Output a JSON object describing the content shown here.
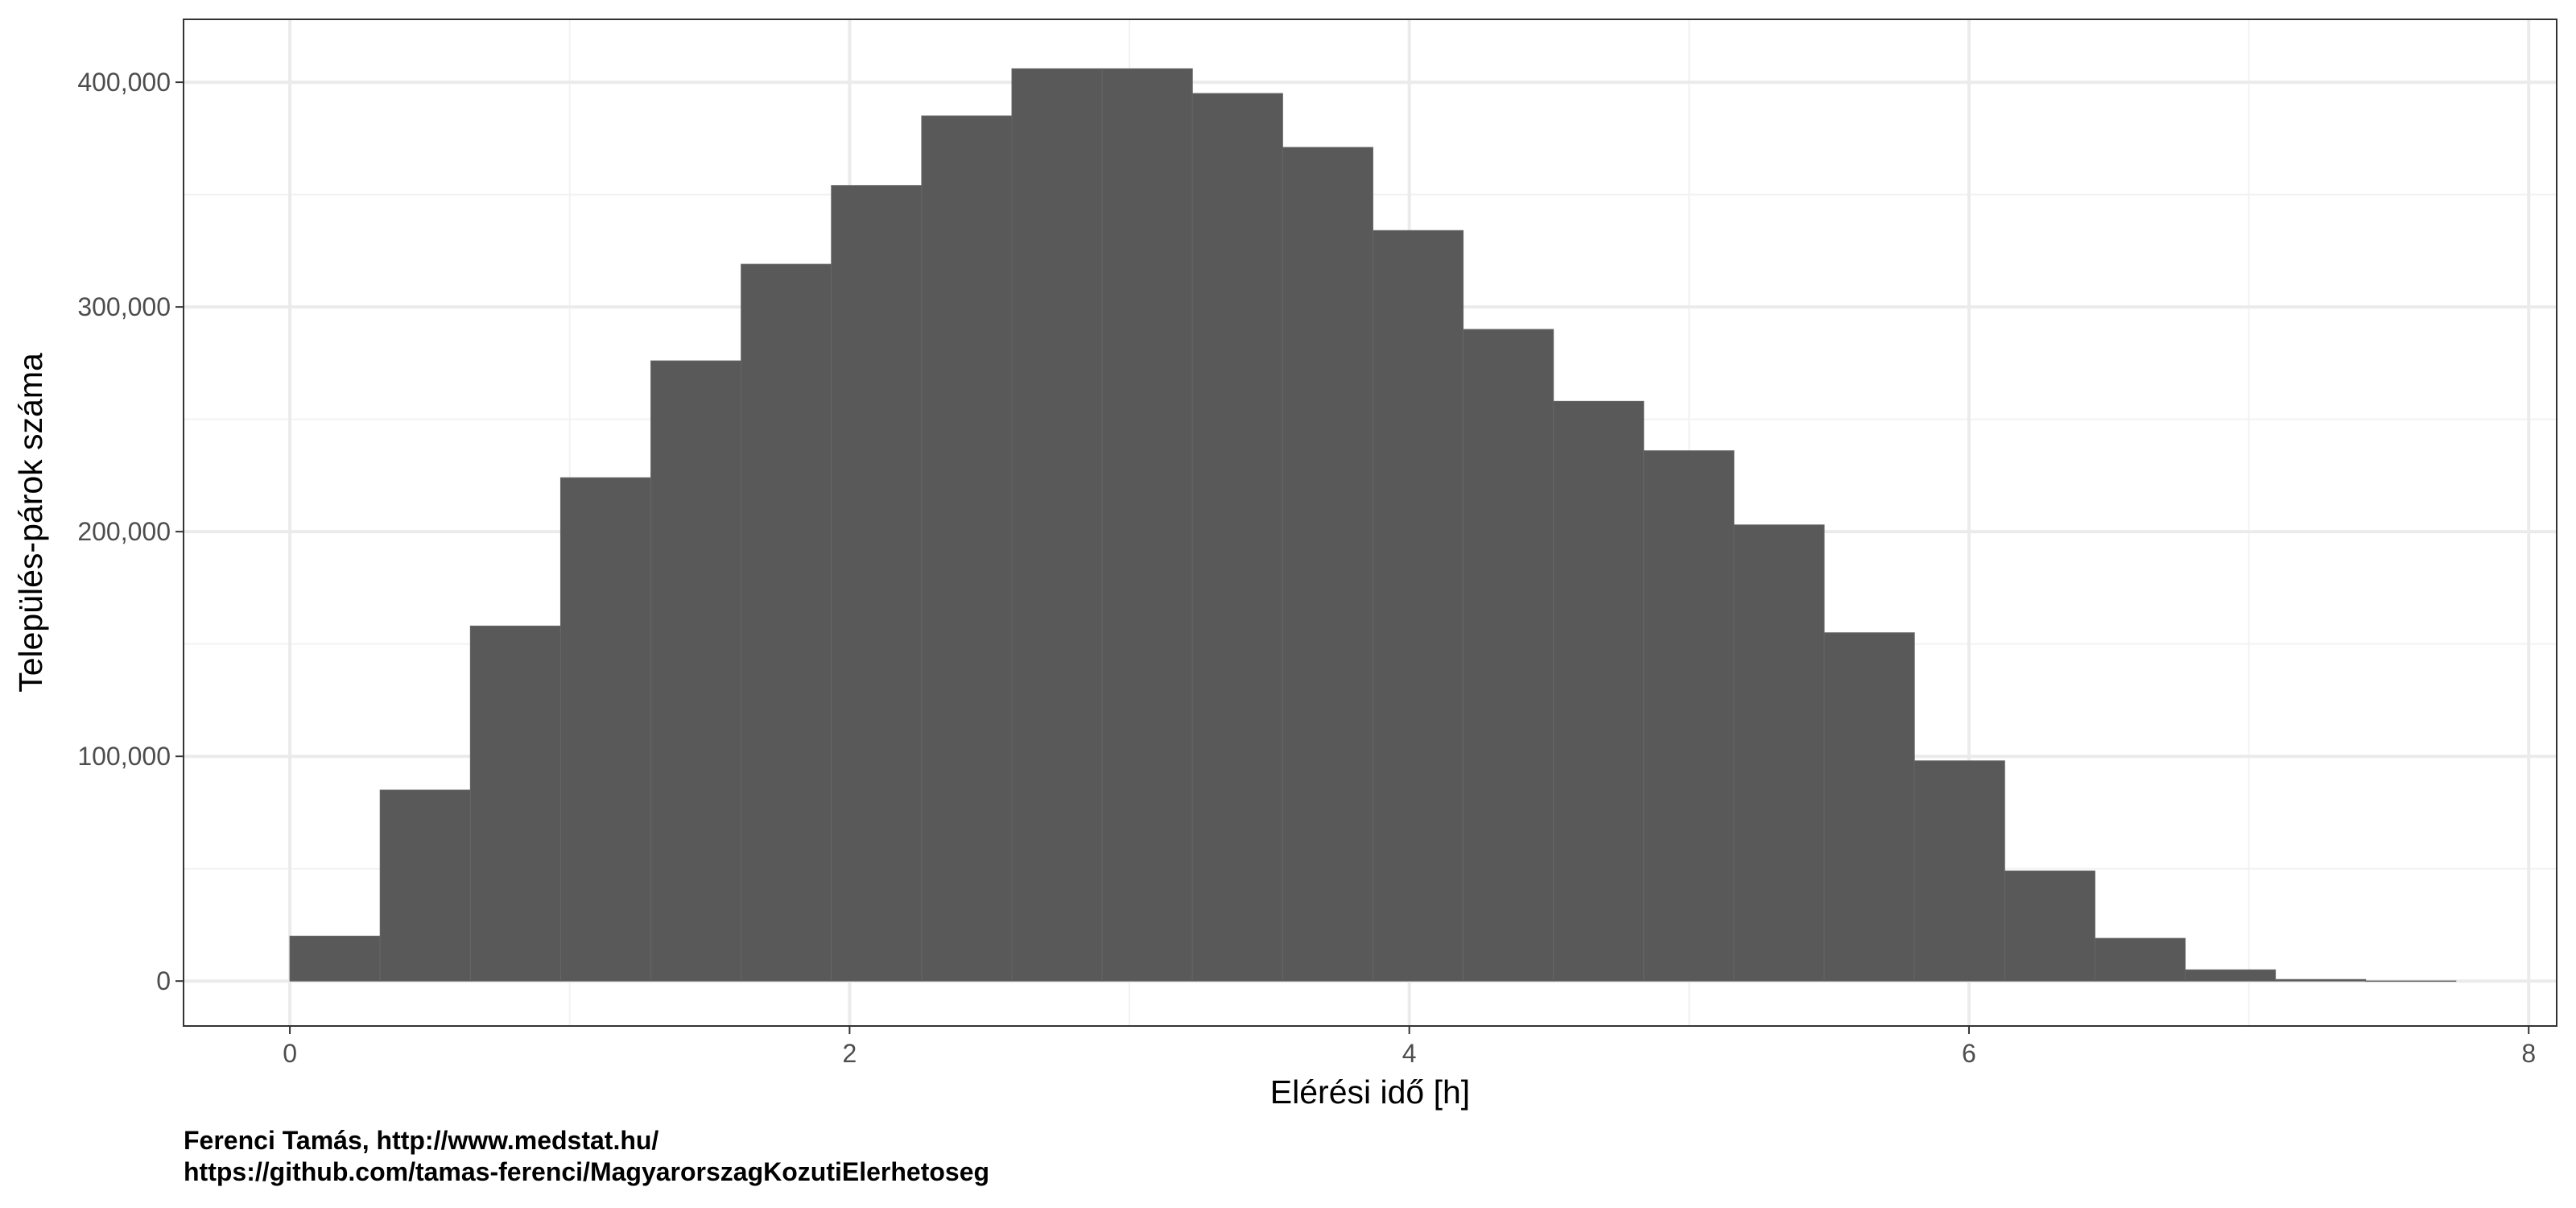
{
  "chart_data": {
    "type": "histogram",
    "xlabel": "Elérési idő [h]",
    "ylabel": "Település-párok száma",
    "xlim": [
      -0.38,
      8.1
    ],
    "ylim": [
      -20000,
      428000
    ],
    "x_ticks": [
      0,
      2,
      4,
      6,
      8
    ],
    "x_tick_labels": [
      "0",
      "2",
      "4",
      "6",
      "8"
    ],
    "y_ticks": [
      0,
      100000,
      200000,
      300000,
      400000
    ],
    "y_tick_labels": [
      "0",
      "100,000",
      "200,000",
      "300,000",
      "400,000"
    ],
    "grid": true,
    "legend": "none",
    "bin_width": 0.3225,
    "bins": [
      {
        "x0": 0.0,
        "x1": 0.3225,
        "value": 20000
      },
      {
        "x0": 0.3225,
        "x1": 0.645,
        "value": 85000
      },
      {
        "x0": 0.645,
        "x1": 0.9675,
        "value": 158000
      },
      {
        "x0": 0.9675,
        "x1": 1.29,
        "value": 224000
      },
      {
        "x0": 1.29,
        "x1": 1.6125,
        "value": 276000
      },
      {
        "x0": 1.6125,
        "x1": 1.935,
        "value": 319000
      },
      {
        "x0": 1.935,
        "x1": 2.2575,
        "value": 354000
      },
      {
        "x0": 2.2575,
        "x1": 2.58,
        "value": 385000
      },
      {
        "x0": 2.58,
        "x1": 2.9025,
        "value": 406000
      },
      {
        "x0": 2.9025,
        "x1": 3.225,
        "value": 406000
      },
      {
        "x0": 3.225,
        "x1": 3.5475,
        "value": 395000
      },
      {
        "x0": 3.5475,
        "x1": 3.87,
        "value": 371000
      },
      {
        "x0": 3.87,
        "x1": 4.1925,
        "value": 334000
      },
      {
        "x0": 4.1925,
        "x1": 4.515,
        "value": 290000
      },
      {
        "x0": 4.515,
        "x1": 4.8375,
        "value": 258000
      },
      {
        "x0": 4.8375,
        "x1": 5.16,
        "value": 236000
      },
      {
        "x0": 5.16,
        "x1": 5.4825,
        "value": 203000
      },
      {
        "x0": 5.4825,
        "x1": 5.805,
        "value": 155000
      },
      {
        "x0": 5.805,
        "x1": 6.1275,
        "value": 98000
      },
      {
        "x0": 6.1275,
        "x1": 6.45,
        "value": 49000
      },
      {
        "x0": 6.45,
        "x1": 6.7725,
        "value": 19000
      },
      {
        "x0": 6.7725,
        "x1": 7.095,
        "value": 5000
      },
      {
        "x0": 7.095,
        "x1": 7.4175,
        "value": 700
      },
      {
        "x0": 7.4175,
        "x1": 7.74,
        "value": 50
      }
    ],
    "colors": {
      "bar_fill": "#595959",
      "bar_stroke": "#666666",
      "panel_border": "#333333",
      "grid_major": "#ebebeb",
      "grid_minor": "#f2f2f2"
    }
  },
  "caption": {
    "line1": "Ferenci Tamás, http://www.medstat.hu/",
    "line2": "https://github.com/tamas-ferenci/MagyarorszagKozutiElerhetoseg"
  }
}
